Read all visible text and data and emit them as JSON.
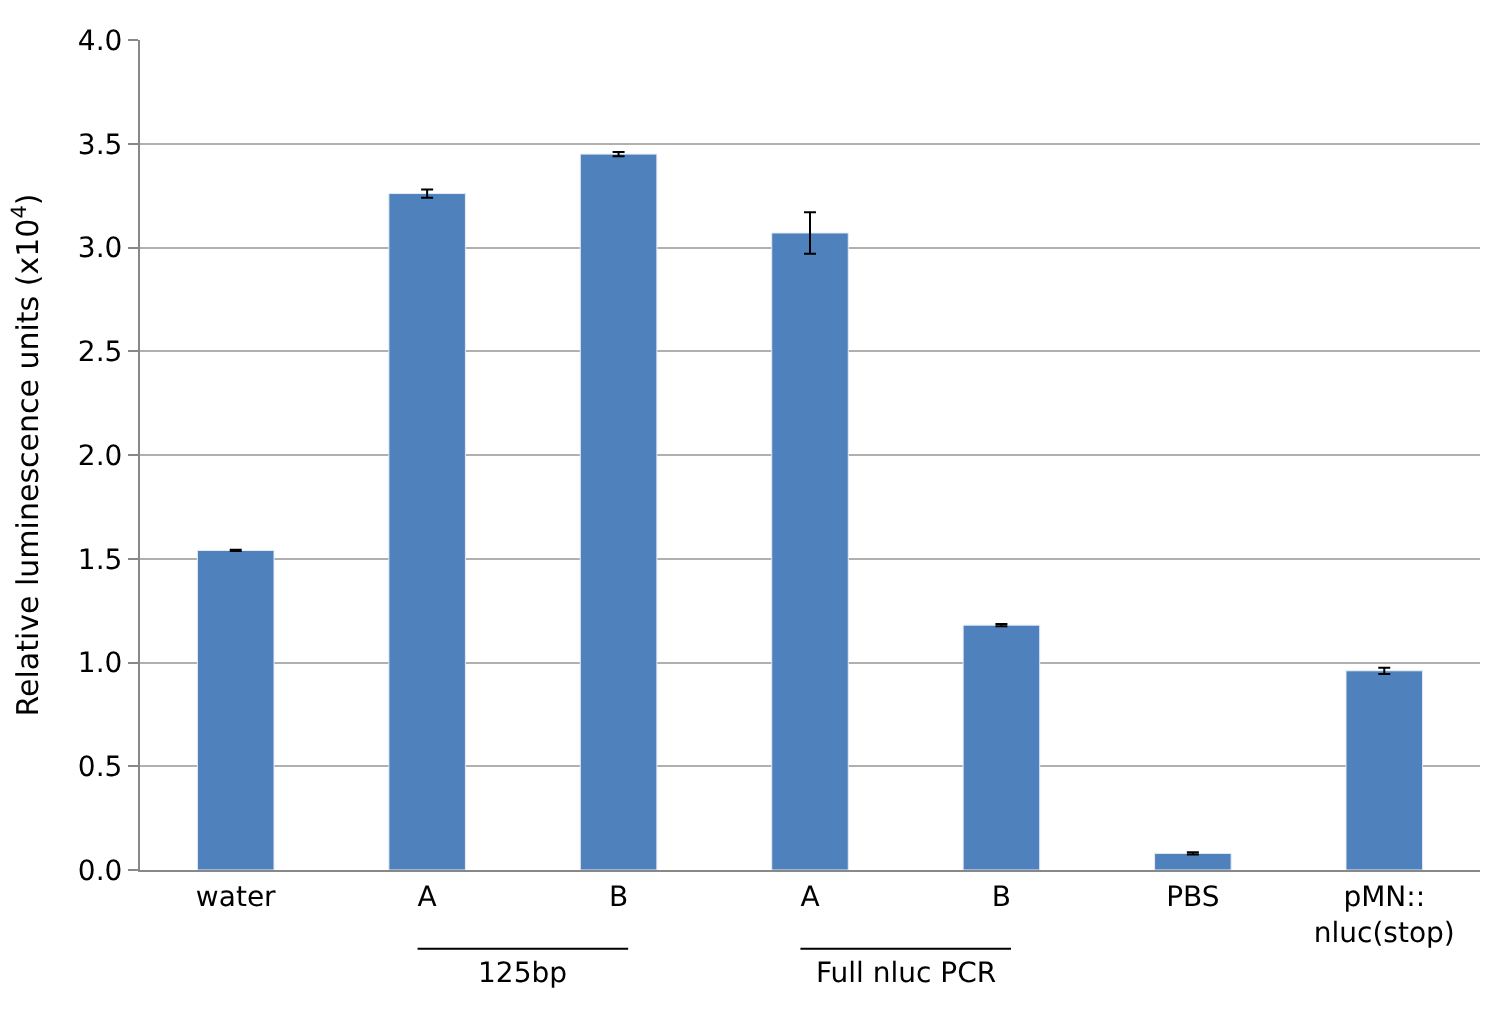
{
  "chart_data": {
    "type": "bar",
    "ylabel": "Relative luminescence units (x10$^{4}$)",
    "categories": [
      "water",
      "A",
      "B",
      "A",
      "B",
      "PBS",
      "pMN::\nnluc(stop)"
    ],
    "series": [
      {
        "color": "#4f81bd",
        "values": [
          1.54,
          3.26,
          3.45,
          3.07,
          1.18,
          0.08,
          0.96
        ],
        "errors": [
          0.003,
          0.02,
          0.01,
          0.1,
          0.005,
          0.005,
          0.015
        ]
      }
    ],
    "ylim": [
      0,
      4
    ],
    "yticks": [
      {
        "value": 0,
        "label": "0.0"
      },
      {
        "value": 0.5,
        "label": "0.5"
      },
      {
        "value": 1,
        "label": "1.0"
      },
      {
        "value": 1.5,
        "label": "1.5"
      },
      {
        "value": 2,
        "label": "2.0"
      },
      {
        "value": 2.5,
        "label": "2.5"
      },
      {
        "value": 3,
        "label": "3.0"
      },
      {
        "value": 3.5,
        "label": "3.5"
      },
      {
        "value": 4,
        "label": "4.0"
      }
    ],
    "grid": "y",
    "annotations": [
      "125bp",
      "Full nluc PCR"
    ]
  }
}
